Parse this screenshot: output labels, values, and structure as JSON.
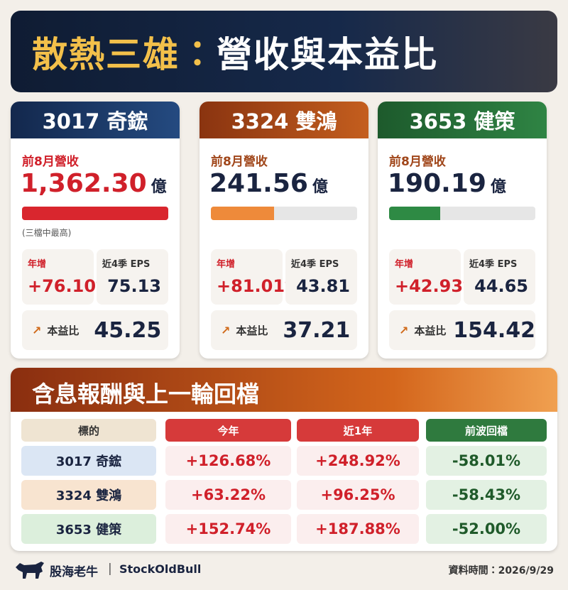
{
  "header": {
    "title_gold": "散熱三雄：",
    "title_white": "營收與本益比"
  },
  "cards": [
    {
      "name": "3017 奇鋐",
      "revenue_label": "前8月營收",
      "revenue": "1,362.30",
      "unit": "億",
      "note": "(三檔中最高)",
      "yoy_label": "年增",
      "yoy": "+76.10%",
      "eps_label": "近4季 EPS",
      "eps": "75.13",
      "pe_label": "本益比",
      "pe": "45.25"
    },
    {
      "name": "3324 雙鴻",
      "revenue_label": "前8月營收",
      "revenue": "241.56",
      "unit": "億",
      "yoy_label": "年增",
      "yoy": "+81.01%",
      "eps_label": "近4季 EPS",
      "eps": "43.81",
      "pe_label": "本益比",
      "pe": "37.21"
    },
    {
      "name": "3653 健策",
      "revenue_label": "前8月營收",
      "revenue": "190.19",
      "unit": "億",
      "yoy_label": "年增",
      "yoy": "+42.93%",
      "eps_label": "近4季 EPS",
      "eps": "44.65",
      "pe_label": "本益比",
      "pe": "154.42"
    }
  ],
  "returns": {
    "title": "含息報酬與上一輪回檔",
    "columns": [
      "標的",
      "今年",
      "近1年",
      "前波回檔"
    ],
    "rows": [
      [
        "3017 奇鋐",
        "+126.68%",
        "+248.92%",
        "-58.01%"
      ],
      [
        "3324 雙鴻",
        "+63.22%",
        "+96.25%",
        "-58.43%"
      ],
      [
        "3653 健策",
        "+152.74%",
        "+187.88%",
        "-52.00%"
      ]
    ]
  },
  "footer": {
    "brand": "股海老牛",
    "handle": "StockOldBull",
    "date": "資料時間：2026/9/29"
  }
}
